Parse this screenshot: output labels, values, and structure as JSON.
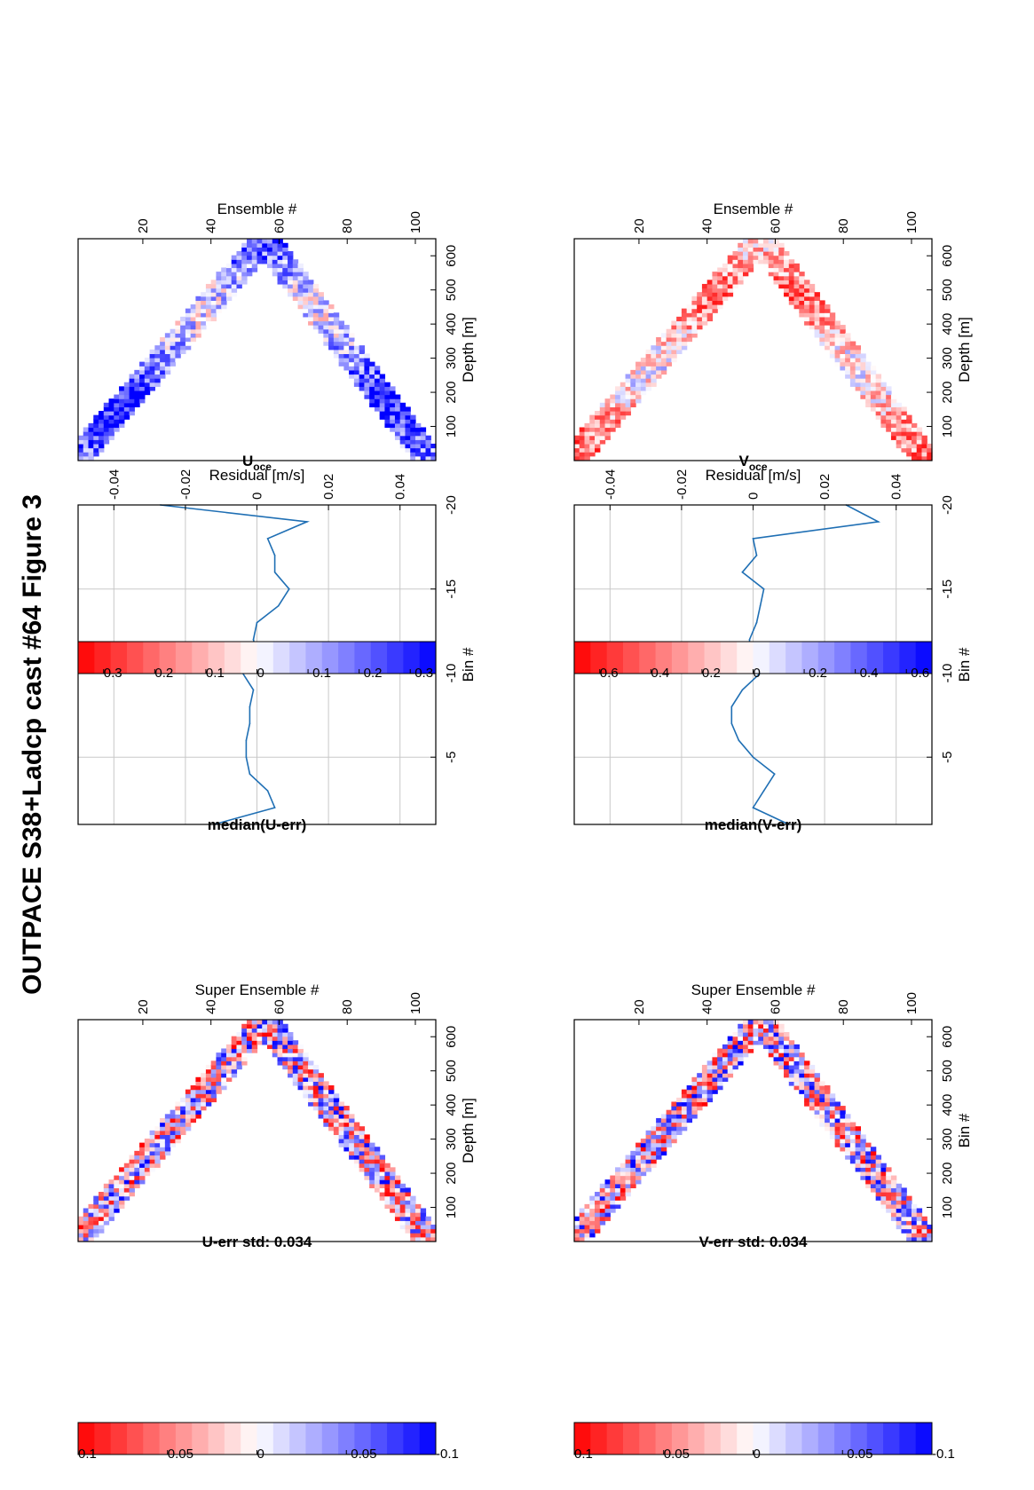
{
  "figure_title": "OUTPACE S38+Ladcp cast #64  Figure 3",
  "colors": {
    "line": "#1f6fb4",
    "grid": "#c8c8c8",
    "positive_end": "#ff0000",
    "negative_end": "#0000ff",
    "neutral": "#ffffff"
  },
  "chart_data": [
    {
      "type": "heatmap",
      "title": "U-err std: 0.034",
      "xlabel": "Super Ensemble #",
      "ylabel": "Depth [m]",
      "xticks": [
        "20",
        "40",
        "60",
        "80",
        "100"
      ],
      "yticks": [
        "100",
        "200",
        "300",
        "400",
        "500",
        "600"
      ],
      "xlim": [
        1,
        106
      ],
      "ylim": [
        0,
        650
      ],
      "colorbar": {
        "ticks": [
          "0.1",
          "0.05",
          "0",
          "-0.05",
          "-0.1"
        ],
        "range": [
          -0.1,
          0.1
        ]
      },
      "pattern": {
        "turn_ensemble": 55,
        "max_depth": 640,
        "band_width_ensembles": 10
      }
    },
    {
      "type": "line",
      "title": "median(U-err)",
      "xlabel": "Residual [m/s]",
      "ylabel": "Bin #",
      "xticks": [
        "-0.04",
        "-0.02",
        "0",
        "0.02",
        "0.04"
      ],
      "yticks": [
        "-5",
        "-10",
        "-15",
        "-20"
      ],
      "xlim": [
        -0.05,
        0.05
      ],
      "ylim": [
        -1,
        -20
      ],
      "grid": true,
      "bins": [
        -1,
        -2,
        -3,
        -4,
        -5,
        -6,
        -7,
        -8,
        -9,
        -10,
        -11,
        -12,
        -13,
        -14,
        -15,
        -16,
        -17,
        -18,
        -19,
        -20
      ],
      "values": [
        -0.012,
        0.005,
        0.003,
        -0.002,
        -0.003,
        -0.003,
        -0.002,
        -0.002,
        -0.001,
        -0.004,
        0.0,
        -0.001,
        0.0,
        0.006,
        0.009,
        0.005,
        0.005,
        0.003,
        0.014,
        -0.027
      ]
    },
    {
      "type": "heatmap",
      "title": "U",
      "title_subscript": "oce",
      "xlabel": "Ensemble #",
      "ylabel": "Depth [m]",
      "xticks": [
        "20",
        "40",
        "60",
        "80",
        "100"
      ],
      "yticks": [
        "100",
        "200",
        "300",
        "400",
        "500",
        "600"
      ],
      "xlim": [
        1,
        106
      ],
      "ylim": [
        0,
        650
      ],
      "colorbar": {
        "ticks": [
          "0.3",
          "0.2",
          "0.1",
          "0",
          "-0.1",
          "-0.2",
          "-0.3"
        ],
        "range": [
          -0.35,
          0.35
        ]
      },
      "pattern": {
        "turn_ensemble": 55,
        "max_depth": 640,
        "band_width_ensembles": 10
      }
    },
    {
      "type": "heatmap",
      "title": "V-err std: 0.034",
      "xlabel": "Super Ensemble #",
      "ylabel": "Bin #",
      "xticks": [
        "20",
        "40",
        "60",
        "80",
        "100"
      ],
      "yticks": [
        "100",
        "200",
        "300",
        "400",
        "500",
        "600"
      ],
      "xlim": [
        1,
        106
      ],
      "ylim": [
        0,
        650
      ],
      "colorbar": {
        "ticks": [
          "0.1",
          "0.05",
          "0",
          "-0.05",
          "-0.1"
        ],
        "range": [
          -0.1,
          0.1
        ]
      },
      "pattern": {
        "turn_ensemble": 55,
        "max_depth": 640,
        "band_width_ensembles": 10
      }
    },
    {
      "type": "line",
      "title": "median(V-err)",
      "xlabel": "Residual [m/s]",
      "ylabel": "Bin #",
      "xticks": [
        "-0.04",
        "-0.02",
        "0",
        "0.02",
        "0.04"
      ],
      "yticks": [
        "-5",
        "-10",
        "-15",
        "-20"
      ],
      "xlim": [
        -0.05,
        0.05
      ],
      "ylim": [
        -1,
        -20
      ],
      "grid": true,
      "bins": [
        -1,
        -2,
        -3,
        -4,
        -5,
        -6,
        -7,
        -8,
        -9,
        -10,
        -11,
        -12,
        -13,
        -14,
        -15,
        -16,
        -17,
        -18,
        -19,
        -20
      ],
      "values": [
        0.01,
        -0.0,
        0.003,
        0.006,
        -0.0,
        -0.004,
        -0.006,
        -0.006,
        -0.003,
        0.002,
        -0.001,
        -0.001,
        0.001,
        0.002,
        0.003,
        -0.003,
        0.001,
        0.0,
        0.035,
        0.026
      ]
    },
    {
      "type": "heatmap",
      "title": "V",
      "title_subscript": "oce",
      "xlabel": "Ensemble #",
      "ylabel": "Depth [m]",
      "xticks": [
        "20",
        "40",
        "60",
        "80",
        "100"
      ],
      "yticks": [
        "100",
        "200",
        "300",
        "400",
        "500",
        "600"
      ],
      "xlim": [
        1,
        106
      ],
      "ylim": [
        0,
        650
      ],
      "colorbar": {
        "ticks": [
          "0.6",
          "0.4",
          "0.2",
          "0",
          "-0.2",
          "-0.4",
          "-0.6"
        ],
        "range": [
          -0.7,
          0.7
        ]
      },
      "pattern": {
        "turn_ensemble": 55,
        "max_depth": 640,
        "band_width_ensembles": 10
      }
    }
  ]
}
